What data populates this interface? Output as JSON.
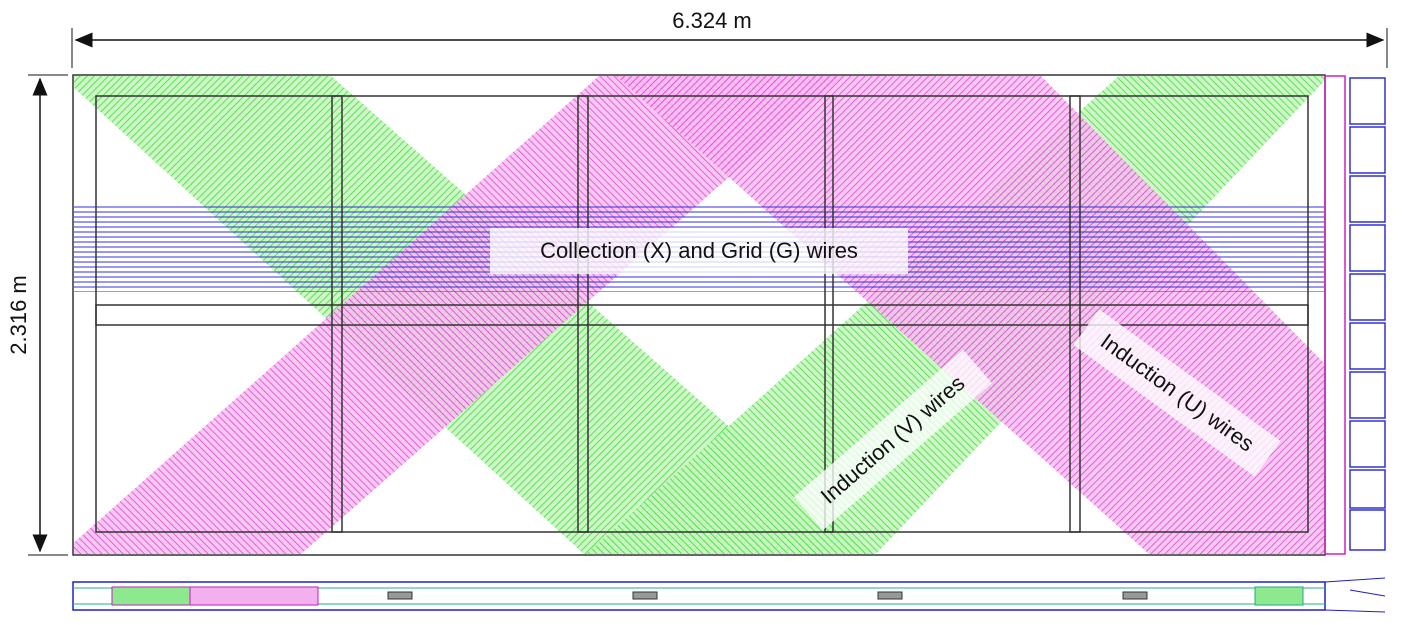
{
  "dimensions": {
    "width": "6.324 m",
    "height": "2.316 m"
  },
  "labels": {
    "collection": "Collection (X) and Grid (G) wires",
    "induction_v": "Induction (V) wires",
    "induction_u": "Induction (U) wires"
  }
}
